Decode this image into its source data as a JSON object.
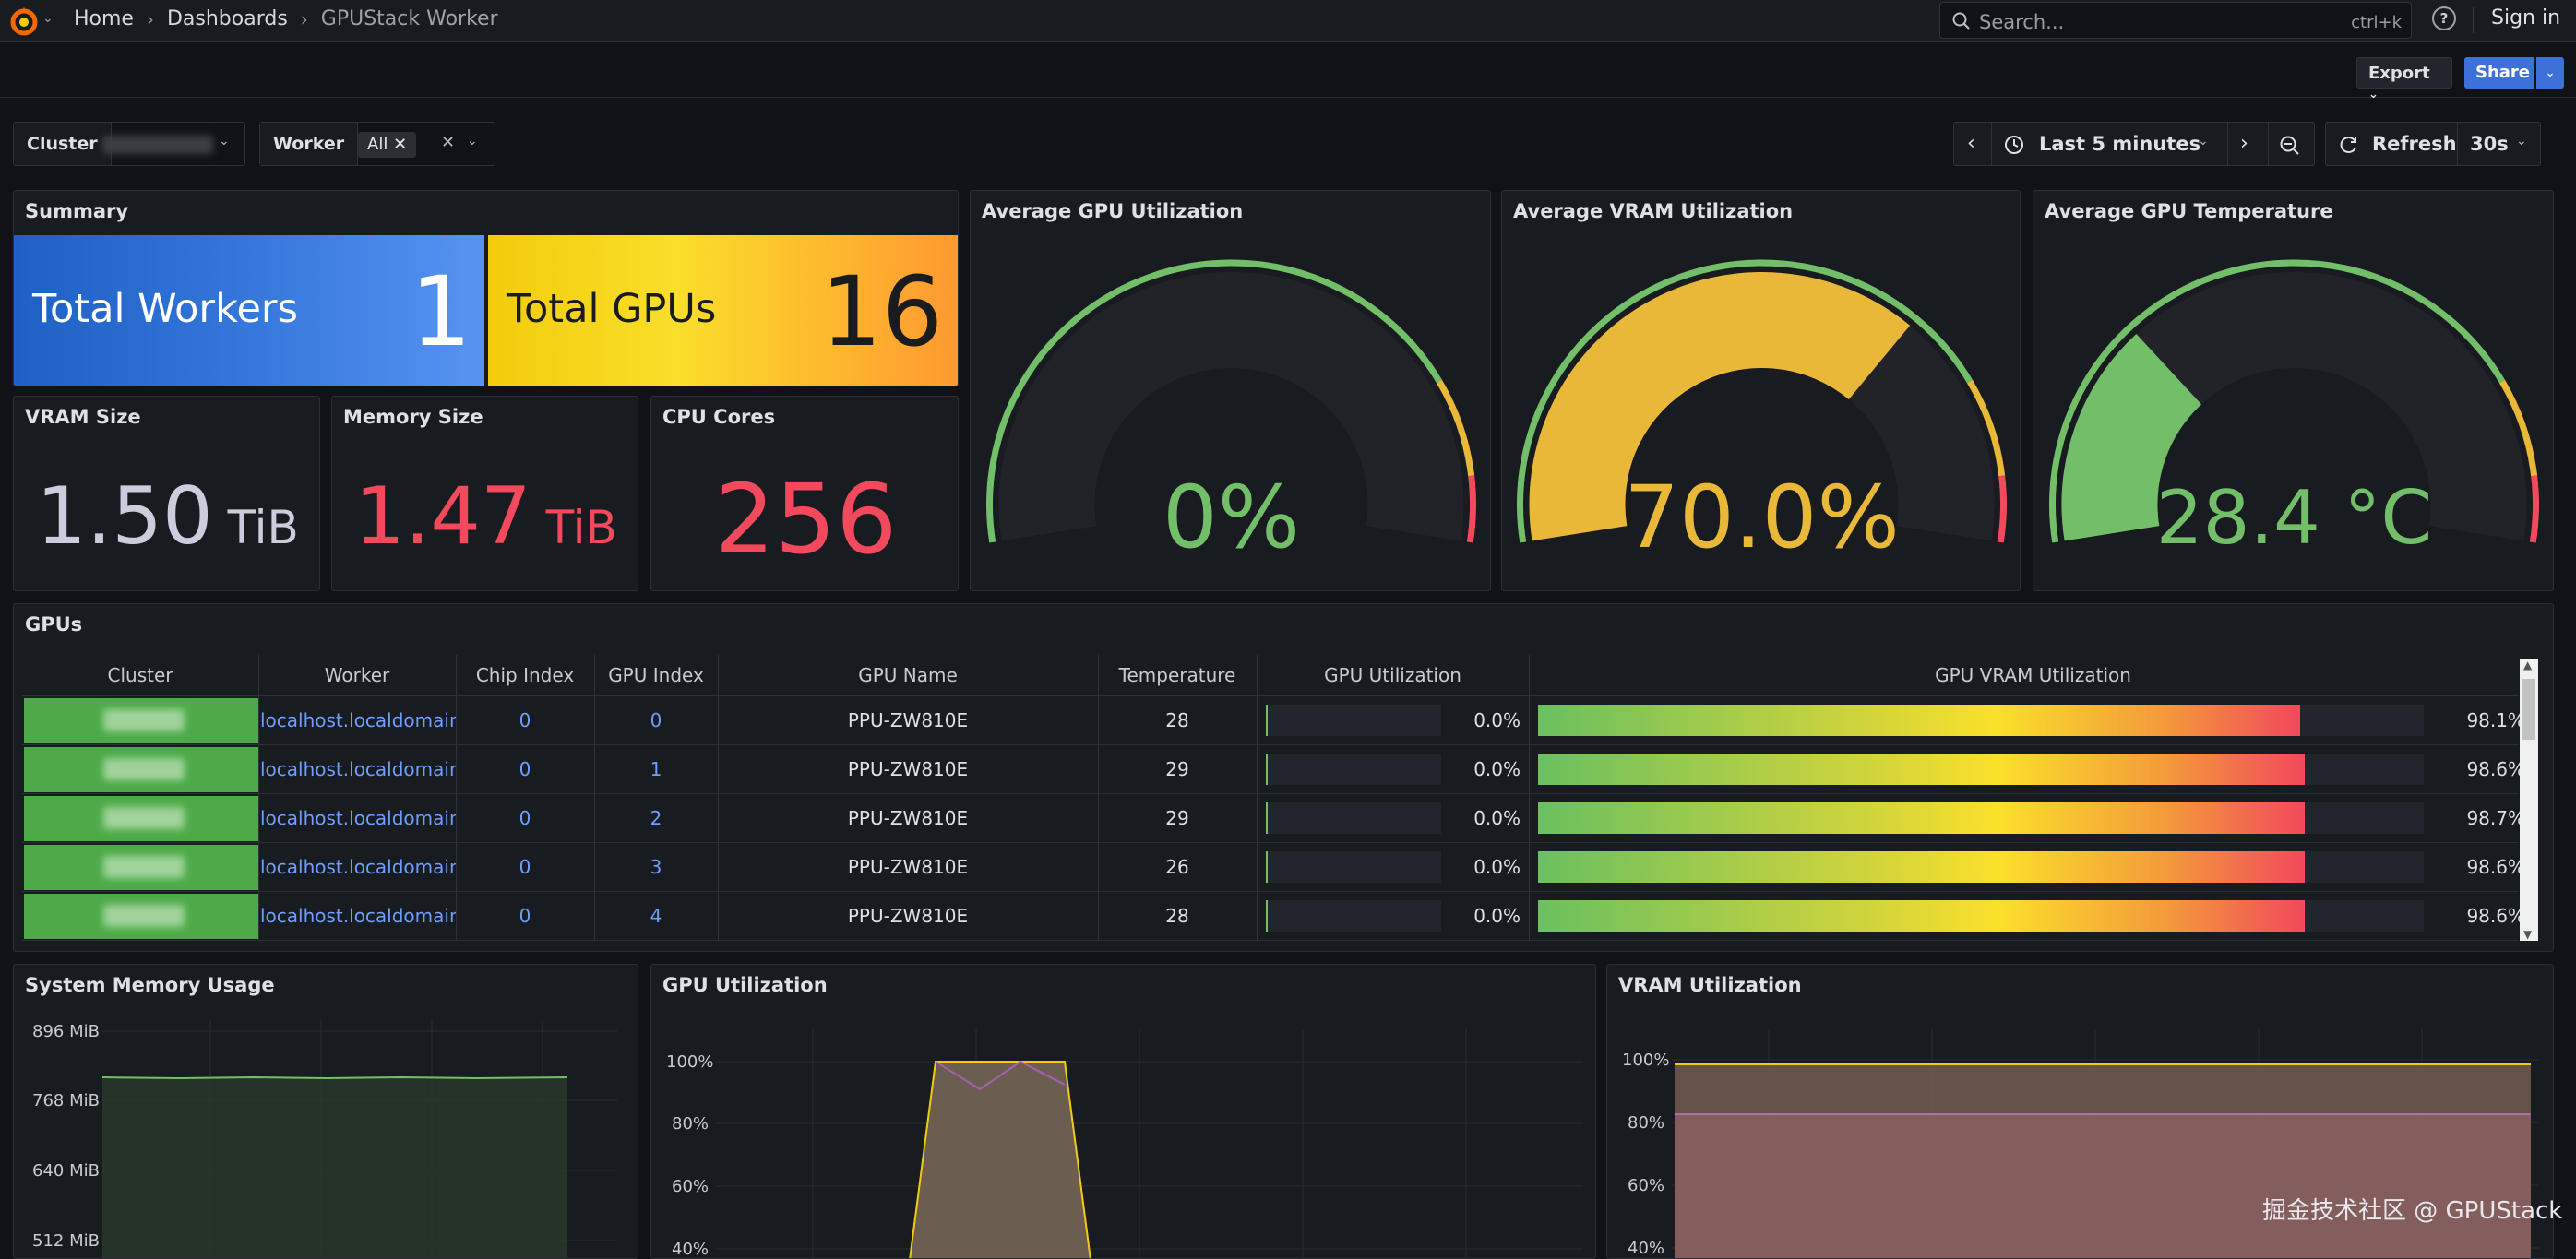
{
  "header": {
    "breadcrumbs": [
      "Home",
      "Dashboards",
      "GPUStack Worker"
    ],
    "search_placeholder": "Search...",
    "search_shortcut": "ctrl+k",
    "help": "?",
    "signin": "Sign in"
  },
  "toolbar": {
    "export_label": "Export",
    "share_label": "Share"
  },
  "variables": {
    "cluster_label": "Cluster",
    "worker_label": "Worker",
    "worker_value": "All",
    "timerange": "Last 5 minutes",
    "refresh_label": "Refresh",
    "refresh_interval": "30s"
  },
  "summary": {
    "title": "Summary",
    "total_workers_label": "Total Workers",
    "total_workers_value": "1",
    "total_gpus_label": "Total GPUs",
    "total_gpus_value": "16"
  },
  "vram_size": {
    "title": "VRAM Size",
    "value": "1.50",
    "unit": "TiB"
  },
  "memory_size": {
    "title": "Memory Size",
    "value": "1.47",
    "unit": "TiB"
  },
  "cpu_cores": {
    "title": "CPU Cores",
    "value": "256"
  },
  "gauges": [
    {
      "title": "Average GPU Utilization",
      "display": "0%",
      "fraction": 0.0,
      "color": "#73bf69"
    },
    {
      "title": "Average VRAM Utilization",
      "display": "70.0%",
      "fraction": 0.7,
      "color": "#eab839"
    },
    {
      "title": "Average GPU Temperature",
      "display": "28.4 °C",
      "fraction": 0.284,
      "color": "#73bf69"
    }
  ],
  "gpus": {
    "title": "GPUs",
    "columns": [
      "Cluster",
      "Worker",
      "Chip Index",
      "GPU Index",
      "GPU Name",
      "Temperature",
      "GPU Utilization",
      "GPU VRAM Utilization"
    ],
    "rows": [
      {
        "worker": "localhost.localdomain",
        "chip": "0",
        "gpu": "0",
        "name": "PPU-ZW810E",
        "temp": "28",
        "util": "0.0%",
        "util_pct": 0.0,
        "vram": "98.1%",
        "vram_pct": 98.1
      },
      {
        "worker": "localhost.localdomain",
        "chip": "0",
        "gpu": "1",
        "name": "PPU-ZW810E",
        "temp": "29",
        "util": "0.0%",
        "util_pct": 0.0,
        "vram": "98.6%",
        "vram_pct": 98.6
      },
      {
        "worker": "localhost.localdomain",
        "chip": "0",
        "gpu": "2",
        "name": "PPU-ZW810E",
        "temp": "29",
        "util": "0.0%",
        "util_pct": 0.0,
        "vram": "98.7%",
        "vram_pct": 98.7
      },
      {
        "worker": "localhost.localdomain",
        "chip": "0",
        "gpu": "3",
        "name": "PPU-ZW810E",
        "temp": "26",
        "util": "0.0%",
        "util_pct": 0.0,
        "vram": "98.6%",
        "vram_pct": 98.6
      },
      {
        "worker": "localhost.localdomain",
        "chip": "0",
        "gpu": "4",
        "name": "PPU-ZW810E",
        "temp": "28",
        "util": "0.0%",
        "util_pct": 0.0,
        "vram": "98.6%",
        "vram_pct": 98.6
      }
    ]
  },
  "sysmem": {
    "title": "System Memory Usage",
    "ticks": [
      "896 MiB",
      "768 MiB",
      "640 MiB",
      "512 MiB"
    ]
  },
  "gpuutil": {
    "title": "GPU Utilization",
    "ticks": [
      "100%",
      "80%",
      "60%",
      "40%"
    ]
  },
  "vramutil": {
    "title": "VRAM Utilization",
    "ticks": [
      "100%",
      "80%",
      "60%",
      "40%"
    ]
  },
  "watermark": "掘金技术社区 @ GPUStack"
}
